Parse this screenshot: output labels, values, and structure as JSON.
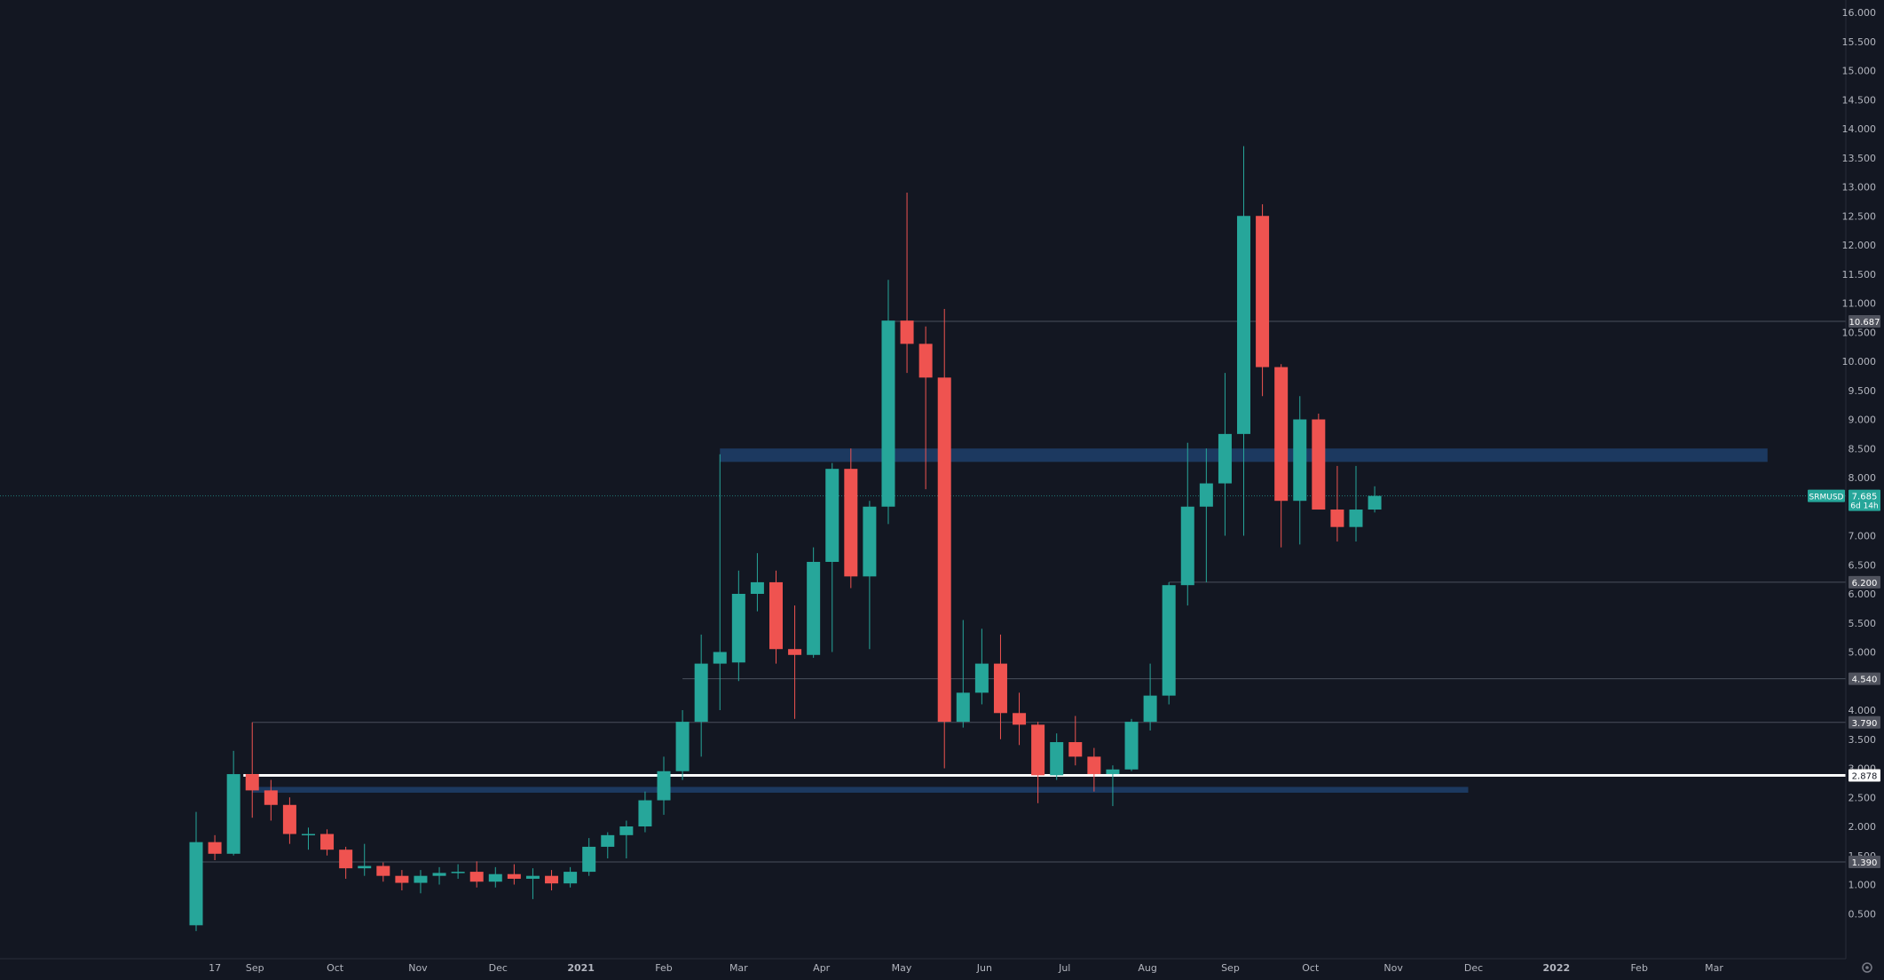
{
  "chart_data": {
    "type": "candlestick",
    "symbol": "SRMUSD",
    "last_price": "7.685",
    "countdown": "6d 14h",
    "colors": {
      "background": "#131722",
      "up": "#26a69a",
      "down": "#ef5350",
      "zone": "#1e3f6b",
      "level_line": "#4a4f5c",
      "key_level": "#ffffff",
      "axis_text": "#b2b5be",
      "label_bg": "#50535e"
    },
    "ylim": [
      0,
      16
    ],
    "y_ticks": [
      "0.500",
      "1.000",
      "1.500",
      "2.000",
      "2.500",
      "3.000",
      "3.500",
      "4.000",
      "4.500",
      "5.000",
      "5.500",
      "6.000",
      "6.500",
      "7.000",
      "7.500",
      "8.000",
      "8.500",
      "9.000",
      "9.500",
      "10.000",
      "10.500",
      "11.000",
      "11.500",
      "12.000",
      "12.500",
      "13.000",
      "13.500",
      "14.000",
      "14.500",
      "15.000",
      "15.500",
      "16.000"
    ],
    "x_range": [
      "2020-08-10",
      "2022-04-11"
    ],
    "x_ticks": [
      {
        "label": "17",
        "date": "2020-08-17"
      },
      {
        "label": "Sep",
        "date": "2020-09-01"
      },
      {
        "label": "Oct",
        "date": "2020-10-01"
      },
      {
        "label": "Nov",
        "date": "2020-11-01"
      },
      {
        "label": "Dec",
        "date": "2020-12-01"
      },
      {
        "label": "2021",
        "date": "2021-01-01",
        "bold": true
      },
      {
        "label": "Feb",
        "date": "2021-02-01"
      },
      {
        "label": "Mar",
        "date": "2021-03-01"
      },
      {
        "label": "Apr",
        "date": "2021-04-01"
      },
      {
        "label": "May",
        "date": "2021-05-01"
      },
      {
        "label": "Jun",
        "date": "2021-06-01"
      },
      {
        "label": "Jul",
        "date": "2021-07-01"
      },
      {
        "label": "Aug",
        "date": "2021-08-01"
      },
      {
        "label": "Sep",
        "date": "2021-09-01"
      },
      {
        "label": "Oct",
        "date": "2021-10-01"
      },
      {
        "label": "Nov",
        "date": "2021-11-01"
      },
      {
        "label": "Dec",
        "date": "2021-12-01"
      },
      {
        "label": "2022",
        "date": "2022-01-01",
        "bold": true
      },
      {
        "label": "Feb",
        "date": "2022-02-01"
      },
      {
        "label": "Mar",
        "date": "2022-03-01"
      }
    ],
    "candles": [
      {
        "date": "2020-08-10",
        "o": 0.3,
        "h": 2.25,
        "l": 0.2,
        "c": 1.73
      },
      {
        "date": "2020-08-17",
        "o": 1.73,
        "h": 1.85,
        "l": 1.42,
        "c": 1.53
      },
      {
        "date": "2020-08-24",
        "o": 1.53,
        "h": 3.3,
        "l": 1.5,
        "c": 2.9
      },
      {
        "date": "2020-08-31",
        "o": 2.9,
        "h": 3.79,
        "l": 2.15,
        "c": 2.62
      },
      {
        "date": "2020-09-07",
        "o": 2.62,
        "h": 2.8,
        "l": 2.1,
        "c": 2.37
      },
      {
        "date": "2020-09-14",
        "o": 2.37,
        "h": 2.5,
        "l": 1.7,
        "c": 1.87
      },
      {
        "date": "2020-09-21",
        "o": 1.87,
        "h": 1.98,
        "l": 1.6,
        "c": 1.87
      },
      {
        "date": "2020-09-28",
        "o": 1.87,
        "h": 1.95,
        "l": 1.5,
        "c": 1.6
      },
      {
        "date": "2020-10-05",
        "o": 1.6,
        "h": 1.65,
        "l": 1.1,
        "c": 1.28
      },
      {
        "date": "2020-10-12",
        "o": 1.28,
        "h": 1.7,
        "l": 1.15,
        "c": 1.32
      },
      {
        "date": "2020-10-19",
        "o": 1.32,
        "h": 1.38,
        "l": 1.05,
        "c": 1.15
      },
      {
        "date": "2020-10-26",
        "o": 1.15,
        "h": 1.25,
        "l": 0.9,
        "c": 1.03
      },
      {
        "date": "2020-11-02",
        "o": 1.03,
        "h": 1.25,
        "l": 0.85,
        "c": 1.15
      },
      {
        "date": "2020-11-09",
        "o": 1.15,
        "h": 1.3,
        "l": 1.0,
        "c": 1.2
      },
      {
        "date": "2020-11-16",
        "o": 1.2,
        "h": 1.35,
        "l": 1.1,
        "c": 1.22
      },
      {
        "date": "2020-11-23",
        "o": 1.22,
        "h": 1.4,
        "l": 0.95,
        "c": 1.05
      },
      {
        "date": "2020-11-30",
        "o": 1.05,
        "h": 1.3,
        "l": 0.95,
        "c": 1.18
      },
      {
        "date": "2020-12-07",
        "o": 1.18,
        "h": 1.35,
        "l": 1.0,
        "c": 1.1
      },
      {
        "date": "2020-12-14",
        "o": 1.1,
        "h": 1.28,
        "l": 0.75,
        "c": 1.15
      },
      {
        "date": "2020-12-21",
        "o": 1.15,
        "h": 1.25,
        "l": 0.9,
        "c": 1.02
      },
      {
        "date": "2020-12-28",
        "o": 1.02,
        "h": 1.3,
        "l": 0.95,
        "c": 1.22
      },
      {
        "date": "2021-01-04",
        "o": 1.22,
        "h": 1.8,
        "l": 1.15,
        "c": 1.65
      },
      {
        "date": "2021-01-11",
        "o": 1.65,
        "h": 1.9,
        "l": 1.45,
        "c": 1.85
      },
      {
        "date": "2021-01-18",
        "o": 1.85,
        "h": 2.1,
        "l": 1.45,
        "c": 2.0
      },
      {
        "date": "2021-01-25",
        "o": 2.0,
        "h": 2.6,
        "l": 1.9,
        "c": 2.45
      },
      {
        "date": "2021-02-01",
        "o": 2.45,
        "h": 3.2,
        "l": 2.2,
        "c": 2.95
      },
      {
        "date": "2021-02-08",
        "o": 2.95,
        "h": 4.0,
        "l": 2.8,
        "c": 3.8
      },
      {
        "date": "2021-02-15",
        "o": 3.8,
        "h": 5.3,
        "l": 3.2,
        "c": 4.8
      },
      {
        "date": "2021-02-22",
        "o": 4.8,
        "h": 8.4,
        "l": 4.0,
        "c": 5.0
      },
      {
        "date": "2021-03-01",
        "o": 4.82,
        "h": 6.4,
        "l": 4.5,
        "c": 6.0
      },
      {
        "date": "2021-03-08",
        "o": 6.0,
        "h": 6.7,
        "l": 5.7,
        "c": 6.2
      },
      {
        "date": "2021-03-15",
        "o": 6.2,
        "h": 6.4,
        "l": 4.8,
        "c": 5.05
      },
      {
        "date": "2021-03-22",
        "o": 5.05,
        "h": 5.8,
        "l": 3.85,
        "c": 4.95
      },
      {
        "date": "2021-03-29",
        "o": 4.95,
        "h": 6.8,
        "l": 4.9,
        "c": 6.55
      },
      {
        "date": "2021-04-05",
        "o": 6.55,
        "h": 8.25,
        "l": 5.0,
        "c": 8.15
      },
      {
        "date": "2021-04-12",
        "o": 8.15,
        "h": 8.5,
        "l": 6.1,
        "c": 6.3
      },
      {
        "date": "2021-04-19",
        "o": 6.3,
        "h": 7.6,
        "l": 5.05,
        "c": 7.5
      },
      {
        "date": "2021-04-26",
        "o": 7.5,
        "h": 11.4,
        "l": 7.2,
        "c": 10.7
      },
      {
        "date": "2021-05-03",
        "o": 10.7,
        "h": 12.9,
        "l": 9.8,
        "c": 10.3
      },
      {
        "date": "2021-05-10",
        "o": 10.3,
        "h": 10.6,
        "l": 7.8,
        "c": 9.72
      },
      {
        "date": "2021-05-17",
        "o": 9.72,
        "h": 10.9,
        "l": 3.0,
        "c": 3.8
      },
      {
        "date": "2021-05-24",
        "o": 3.8,
        "h": 5.55,
        "l": 3.7,
        "c": 4.3
      },
      {
        "date": "2021-05-31",
        "o": 4.3,
        "h": 5.4,
        "l": 4.1,
        "c": 4.8
      },
      {
        "date": "2021-06-07",
        "o": 4.8,
        "h": 5.3,
        "l": 3.5,
        "c": 3.95
      },
      {
        "date": "2021-06-14",
        "o": 3.95,
        "h": 4.3,
        "l": 3.4,
        "c": 3.75
      },
      {
        "date": "2021-06-21",
        "o": 3.75,
        "h": 3.8,
        "l": 2.4,
        "c": 2.88
      },
      {
        "date": "2021-06-28",
        "o": 2.88,
        "h": 3.6,
        "l": 2.8,
        "c": 3.45
      },
      {
        "date": "2021-07-05",
        "o": 3.45,
        "h": 3.9,
        "l": 3.05,
        "c": 3.2
      },
      {
        "date": "2021-07-12",
        "o": 3.2,
        "h": 3.35,
        "l": 2.6,
        "c": 2.9
      },
      {
        "date": "2021-07-19",
        "o": 2.9,
        "h": 3.05,
        "l": 2.35,
        "c": 2.98
      },
      {
        "date": "2021-07-26",
        "o": 2.98,
        "h": 3.85,
        "l": 2.95,
        "c": 3.8
      },
      {
        "date": "2021-08-02",
        "o": 3.8,
        "h": 4.8,
        "l": 3.65,
        "c": 4.25
      },
      {
        "date": "2021-08-09",
        "o": 4.25,
        "h": 6.2,
        "l": 4.1,
        "c": 6.15
      },
      {
        "date": "2021-08-16",
        "o": 6.15,
        "h": 8.6,
        "l": 5.8,
        "c": 7.5
      },
      {
        "date": "2021-08-23",
        "o": 7.5,
        "h": 8.5,
        "l": 6.2,
        "c": 7.9
      },
      {
        "date": "2021-08-30",
        "o": 7.9,
        "h": 9.8,
        "l": 7.0,
        "c": 8.75
      },
      {
        "date": "2021-09-06",
        "o": 8.75,
        "h": 13.7,
        "l": 7.0,
        "c": 12.5
      },
      {
        "date": "2021-09-13",
        "o": 12.5,
        "h": 12.7,
        "l": 9.4,
        "c": 9.9
      },
      {
        "date": "2021-09-20",
        "o": 9.9,
        "h": 9.95,
        "l": 6.8,
        "c": 7.6
      },
      {
        "date": "2021-09-27",
        "o": 7.6,
        "h": 9.4,
        "l": 6.85,
        "c": 9.0
      },
      {
        "date": "2021-10-04",
        "o": 9.0,
        "h": 9.1,
        "l": 7.45,
        "c": 7.45
      },
      {
        "date": "2021-10-11",
        "o": 7.45,
        "h": 8.2,
        "l": 6.9,
        "c": 7.15
      },
      {
        "date": "2021-10-18",
        "o": 7.15,
        "h": 8.2,
        "l": 6.9,
        "c": 7.45
      },
      {
        "date": "2021-10-25",
        "o": 7.45,
        "h": 7.85,
        "l": 7.4,
        "c": 7.685
      }
    ],
    "horizontal_levels": [
      {
        "price": 10.687,
        "label": "10.687",
        "start": "2021-04-26"
      },
      {
        "price": 6.2,
        "label": "6.200",
        "start": "2021-08-09"
      },
      {
        "price": 4.54,
        "label": "4.540",
        "start": "2021-02-08"
      },
      {
        "price": 3.79,
        "label": "3.790",
        "start": "2020-08-31"
      },
      {
        "price": 1.39,
        "label": "1.390",
        "start": "2020-08-10"
      }
    ],
    "key_level": {
      "price": 2.878,
      "label": "2.878",
      "start": "2020-08-31"
    },
    "zones": [
      {
        "top": 8.5,
        "bottom": 8.27,
        "start": "2021-02-22",
        "end": "2022-03-21"
      },
      {
        "top": 2.68,
        "bottom": 2.58,
        "start": "2020-08-31",
        "end": "2021-11-29"
      }
    ]
  }
}
